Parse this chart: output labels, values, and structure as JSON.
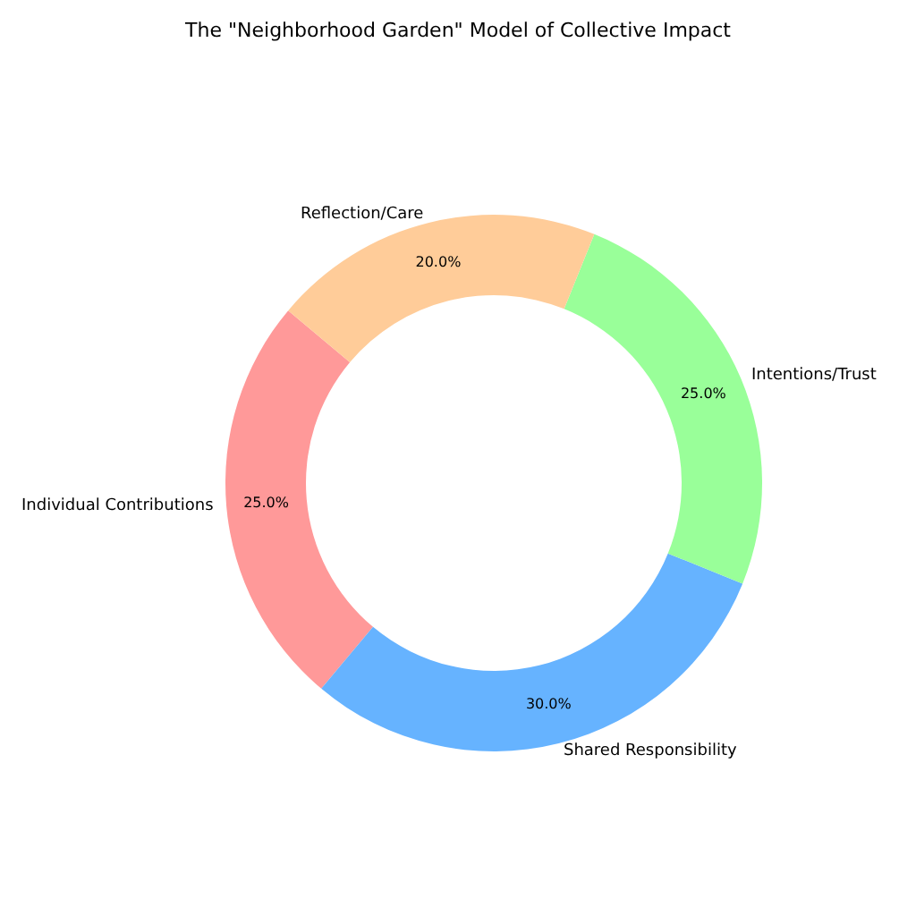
{
  "chart_data": {
    "type": "donut",
    "title": "The \"Neighborhood Garden\" Model of Collective Impact",
    "categories": [
      "Individual Contributions",
      "Shared Responsibility",
      "Intentions/Trust",
      "Reflection/Care"
    ],
    "values": [
      25,
      30,
      25,
      20
    ],
    "value_labels": [
      "25.0%",
      "30.0%",
      "25.0%",
      "20.0%"
    ],
    "colors": [
      "#ff9999",
      "#66b3ff",
      "#99ff99",
      "#ffcc99"
    ]
  }
}
